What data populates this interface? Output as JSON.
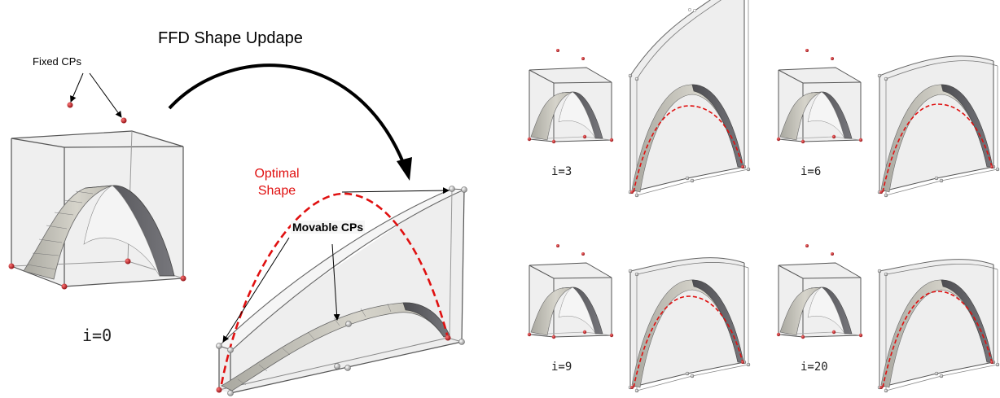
{
  "labels": {
    "title": "FFD Shape Updape",
    "fixed_cps": "Fixed CPs",
    "optimal_shape_line1": "Optimal",
    "optimal_shape_line2": "Shape",
    "movable_cps": "Movable CPs",
    "iter_0": "i=0",
    "iter_3": "i=3",
    "iter_6": "i=6",
    "iter_9": "i=9",
    "iter_20": "i=20"
  },
  "colors": {
    "control_point_fixed": "#c0151a",
    "control_point_movable": "#b0b0b0",
    "optimal_curve": "#e01010",
    "box_fill": "#ededed",
    "box_edge": "#555555",
    "surface_light": "#c9c7bd",
    "surface_dark": "#5f5f63"
  }
}
